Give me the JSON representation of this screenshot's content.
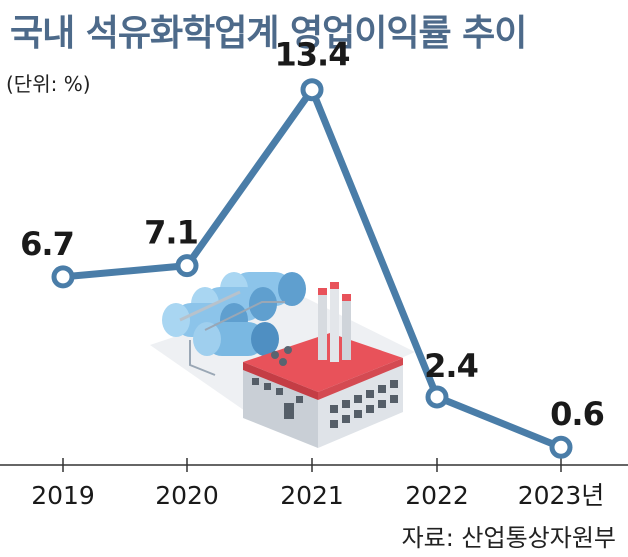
{
  "title": "국내 석유화학업계 영업이익률 추이",
  "unit_label": "(단위: %)",
  "source": "자료: 산업통상자원부",
  "colors": {
    "line": "#4a7da8",
    "title": "#4d6a8a",
    "axis": "#333333",
    "factory_roof": "#e8525a",
    "tank": "#6fb0dc"
  },
  "illustration": {
    "icon": "petrochemical-plant-illustration"
  },
  "chart_data": {
    "type": "line",
    "title": "국내 석유화학업계 영업이익률 추이",
    "categories": [
      "2019",
      "2020",
      "2021",
      "2022",
      "2023년"
    ],
    "series": [
      {
        "values": [
          6.7,
          7.1,
          13.4,
          2.4,
          0.6
        ]
      }
    ],
    "data_labels": [
      "6.7",
      "7.1",
      "13.4",
      "2.4",
      "0.6"
    ],
    "xlabel": "",
    "ylabel": "",
    "unit": "%",
    "ylim": [
      0,
      15
    ],
    "grid": false,
    "legend": "none"
  }
}
